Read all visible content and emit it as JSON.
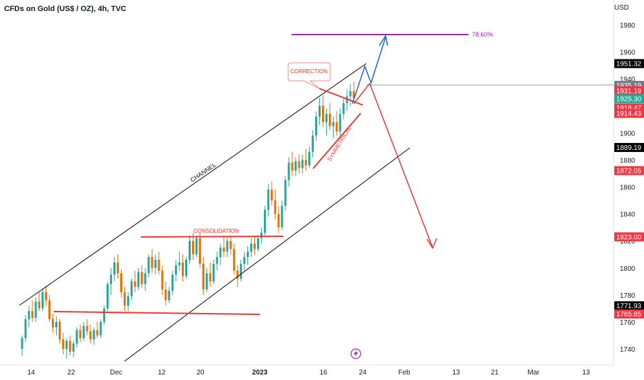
{
  "header": {
    "symbol_title": "CFDs on Gold (US$ / OZ), 4h, TVC",
    "currency": "USD"
  },
  "chart_data": {
    "type": "candlestick",
    "title": "CFDs on Gold (US$ / OZ), 4h, TVC",
    "interval": "4h",
    "source": "TVC",
    "currency": "USD",
    "ylim": [
      1730,
      1990
    ],
    "x_tick_labels": [
      "14",
      "22",
      "Dec",
      "12",
      "20",
      "2023",
      "16",
      "24",
      "Feb",
      "13",
      "21",
      "Mar",
      "13"
    ],
    "y_tick_labels": [
      1980,
      1960,
      1940,
      1920,
      1900,
      1880,
      1860,
      1840,
      1820,
      1800,
      1780,
      1760,
      1740
    ],
    "price_badges": [
      {
        "value": "1951.32",
        "color": "#000000"
      },
      {
        "value": "1935.19",
        "color": "#787b86"
      },
      {
        "value": "1931.19",
        "color": "#f23645"
      },
      {
        "value": "1925.30",
        "color": "#22ab94"
      },
      {
        "value": "1918.47",
        "color": "#f23645"
      },
      {
        "value": "1914.43",
        "color": "#f23645"
      },
      {
        "value": "1889.19",
        "color": "#000000"
      },
      {
        "value": "1872.05",
        "color": "#f23645"
      },
      {
        "value": "1823.00",
        "color": "#f23645"
      },
      {
        "value": "1771.93",
        "color": "#000000"
      },
      {
        "value": "1765.85",
        "color": "#f23645"
      }
    ],
    "annotations": {
      "channel_label": "CHANNEL",
      "consolidation_label": "CONSOLIDATION",
      "correction_label": "CORRECTION",
      "symmetrical_label": "SYMMETRICAL",
      "fib_label": "78.60%"
    },
    "candles": [
      {
        "o": 1740,
        "h": 1750,
        "l": 1735,
        "c": 1748
      },
      {
        "o": 1748,
        "h": 1765,
        "l": 1745,
        "c": 1762
      },
      {
        "o": 1762,
        "h": 1772,
        "l": 1756,
        "c": 1768
      },
      {
        "o": 1768,
        "h": 1776,
        "l": 1760,
        "c": 1763
      },
      {
        "o": 1763,
        "h": 1778,
        "l": 1760,
        "c": 1775
      },
      {
        "o": 1775,
        "h": 1782,
        "l": 1768,
        "c": 1770
      },
      {
        "o": 1770,
        "h": 1785,
        "l": 1768,
        "c": 1782
      },
      {
        "o": 1782,
        "h": 1787,
        "l": 1772,
        "c": 1776
      },
      {
        "o": 1776,
        "h": 1780,
        "l": 1760,
        "c": 1762
      },
      {
        "o": 1762,
        "h": 1766,
        "l": 1752,
        "c": 1756
      },
      {
        "o": 1756,
        "h": 1764,
        "l": 1750,
        "c": 1760
      },
      {
        "o": 1760,
        "h": 1762,
        "l": 1744,
        "c": 1747
      },
      {
        "o": 1747,
        "h": 1752,
        "l": 1736,
        "c": 1740
      },
      {
        "o": 1740,
        "h": 1748,
        "l": 1733,
        "c": 1746
      },
      {
        "o": 1746,
        "h": 1750,
        "l": 1735,
        "c": 1738
      },
      {
        "o": 1738,
        "h": 1746,
        "l": 1734,
        "c": 1744
      },
      {
        "o": 1744,
        "h": 1756,
        "l": 1741,
        "c": 1754
      },
      {
        "o": 1754,
        "h": 1758,
        "l": 1745,
        "c": 1748
      },
      {
        "o": 1748,
        "h": 1760,
        "l": 1746,
        "c": 1757
      },
      {
        "o": 1757,
        "h": 1762,
        "l": 1750,
        "c": 1753
      },
      {
        "o": 1753,
        "h": 1758,
        "l": 1744,
        "c": 1747
      },
      {
        "o": 1747,
        "h": 1756,
        "l": 1743,
        "c": 1754
      },
      {
        "o": 1754,
        "h": 1760,
        "l": 1748,
        "c": 1750
      },
      {
        "o": 1750,
        "h": 1762,
        "l": 1748,
        "c": 1760
      },
      {
        "o": 1760,
        "h": 1772,
        "l": 1758,
        "c": 1770
      },
      {
        "o": 1770,
        "h": 1790,
        "l": 1768,
        "c": 1788
      },
      {
        "o": 1788,
        "h": 1800,
        "l": 1780,
        "c": 1795
      },
      {
        "o": 1795,
        "h": 1808,
        "l": 1790,
        "c": 1804
      },
      {
        "o": 1804,
        "h": 1810,
        "l": 1792,
        "c": 1796
      },
      {
        "o": 1796,
        "h": 1799,
        "l": 1778,
        "c": 1782
      },
      {
        "o": 1782,
        "h": 1786,
        "l": 1768,
        "c": 1772
      },
      {
        "o": 1772,
        "h": 1782,
        "l": 1768,
        "c": 1779
      },
      {
        "o": 1779,
        "h": 1792,
        "l": 1776,
        "c": 1790
      },
      {
        "o": 1790,
        "h": 1798,
        "l": 1782,
        "c": 1786
      },
      {
        "o": 1786,
        "h": 1800,
        "l": 1784,
        "c": 1797
      },
      {
        "o": 1797,
        "h": 1802,
        "l": 1785,
        "c": 1788
      },
      {
        "o": 1788,
        "h": 1800,
        "l": 1783,
        "c": 1796
      },
      {
        "o": 1796,
        "h": 1810,
        "l": 1793,
        "c": 1808
      },
      {
        "o": 1808,
        "h": 1814,
        "l": 1796,
        "c": 1800
      },
      {
        "o": 1800,
        "h": 1810,
        "l": 1795,
        "c": 1806
      },
      {
        "o": 1806,
        "h": 1812,
        "l": 1795,
        "c": 1798
      },
      {
        "o": 1798,
        "h": 1802,
        "l": 1780,
        "c": 1784
      },
      {
        "o": 1784,
        "h": 1790,
        "l": 1772,
        "c": 1776
      },
      {
        "o": 1776,
        "h": 1786,
        "l": 1774,
        "c": 1783
      },
      {
        "o": 1783,
        "h": 1798,
        "l": 1780,
        "c": 1795
      },
      {
        "o": 1795,
        "h": 1806,
        "l": 1790,
        "c": 1802
      },
      {
        "o": 1802,
        "h": 1812,
        "l": 1798,
        "c": 1804
      },
      {
        "o": 1804,
        "h": 1810,
        "l": 1790,
        "c": 1794
      },
      {
        "o": 1794,
        "h": 1808,
        "l": 1792,
        "c": 1806
      },
      {
        "o": 1806,
        "h": 1824,
        "l": 1803,
        "c": 1820
      },
      {
        "o": 1820,
        "h": 1826,
        "l": 1806,
        "c": 1810
      },
      {
        "o": 1810,
        "h": 1824,
        "l": 1808,
        "c": 1822
      },
      {
        "o": 1822,
        "h": 1826,
        "l": 1800,
        "c": 1803
      },
      {
        "o": 1803,
        "h": 1808,
        "l": 1780,
        "c": 1784
      },
      {
        "o": 1784,
        "h": 1800,
        "l": 1782,
        "c": 1796
      },
      {
        "o": 1796,
        "h": 1804,
        "l": 1786,
        "c": 1790
      },
      {
        "o": 1790,
        "h": 1806,
        "l": 1788,
        "c": 1803
      },
      {
        "o": 1803,
        "h": 1812,
        "l": 1798,
        "c": 1808
      },
      {
        "o": 1808,
        "h": 1818,
        "l": 1802,
        "c": 1815
      },
      {
        "o": 1815,
        "h": 1824,
        "l": 1808,
        "c": 1812
      },
      {
        "o": 1812,
        "h": 1823,
        "l": 1808,
        "c": 1820
      },
      {
        "o": 1820,
        "h": 1824,
        "l": 1810,
        "c": 1814
      },
      {
        "o": 1814,
        "h": 1818,
        "l": 1795,
        "c": 1798
      },
      {
        "o": 1798,
        "h": 1802,
        "l": 1786,
        "c": 1792
      },
      {
        "o": 1792,
        "h": 1806,
        "l": 1790,
        "c": 1803
      },
      {
        "o": 1803,
        "h": 1812,
        "l": 1798,
        "c": 1808
      },
      {
        "o": 1808,
        "h": 1816,
        "l": 1802,
        "c": 1812
      },
      {
        "o": 1812,
        "h": 1822,
        "l": 1808,
        "c": 1818
      },
      {
        "o": 1818,
        "h": 1824,
        "l": 1810,
        "c": 1814
      },
      {
        "o": 1814,
        "h": 1824,
        "l": 1812,
        "c": 1822
      },
      {
        "o": 1822,
        "h": 1830,
        "l": 1818,
        "c": 1826
      },
      {
        "o": 1826,
        "h": 1846,
        "l": 1824,
        "c": 1843
      },
      {
        "o": 1843,
        "h": 1862,
        "l": 1838,
        "c": 1858
      },
      {
        "o": 1858,
        "h": 1864,
        "l": 1846,
        "c": 1850
      },
      {
        "o": 1850,
        "h": 1858,
        "l": 1836,
        "c": 1840
      },
      {
        "o": 1840,
        "h": 1846,
        "l": 1826,
        "c": 1830
      },
      {
        "o": 1830,
        "h": 1850,
        "l": 1828,
        "c": 1846
      },
      {
        "o": 1846,
        "h": 1868,
        "l": 1842,
        "c": 1865
      },
      {
        "o": 1865,
        "h": 1882,
        "l": 1860,
        "c": 1878
      },
      {
        "o": 1878,
        "h": 1886,
        "l": 1868,
        "c": 1872
      },
      {
        "o": 1872,
        "h": 1882,
        "l": 1868,
        "c": 1879
      },
      {
        "o": 1879,
        "h": 1884,
        "l": 1870,
        "c": 1874
      },
      {
        "o": 1874,
        "h": 1884,
        "l": 1870,
        "c": 1880
      },
      {
        "o": 1880,
        "h": 1888,
        "l": 1872,
        "c": 1876
      },
      {
        "o": 1876,
        "h": 1890,
        "l": 1874,
        "c": 1886
      },
      {
        "o": 1886,
        "h": 1902,
        "l": 1882,
        "c": 1898
      },
      {
        "o": 1898,
        "h": 1916,
        "l": 1894,
        "c": 1912
      },
      {
        "o": 1912,
        "h": 1926,
        "l": 1906,
        "c": 1920
      },
      {
        "o": 1920,
        "h": 1928,
        "l": 1904,
        "c": 1908
      },
      {
        "o": 1908,
        "h": 1918,
        "l": 1898,
        "c": 1914
      },
      {
        "o": 1914,
        "h": 1922,
        "l": 1902,
        "c": 1905
      },
      {
        "o": 1905,
        "h": 1912,
        "l": 1896,
        "c": 1908
      },
      {
        "o": 1908,
        "h": 1916,
        "l": 1898,
        "c": 1901
      },
      {
        "o": 1901,
        "h": 1918,
        "l": 1898,
        "c": 1914
      },
      {
        "o": 1914,
        "h": 1926,
        "l": 1910,
        "c": 1922
      },
      {
        "o": 1922,
        "h": 1932,
        "l": 1916,
        "c": 1927
      },
      {
        "o": 1927,
        "h": 1936,
        "l": 1920,
        "c": 1931
      },
      {
        "o": 1931,
        "h": 1938,
        "l": 1924,
        "c": 1926
      }
    ]
  }
}
